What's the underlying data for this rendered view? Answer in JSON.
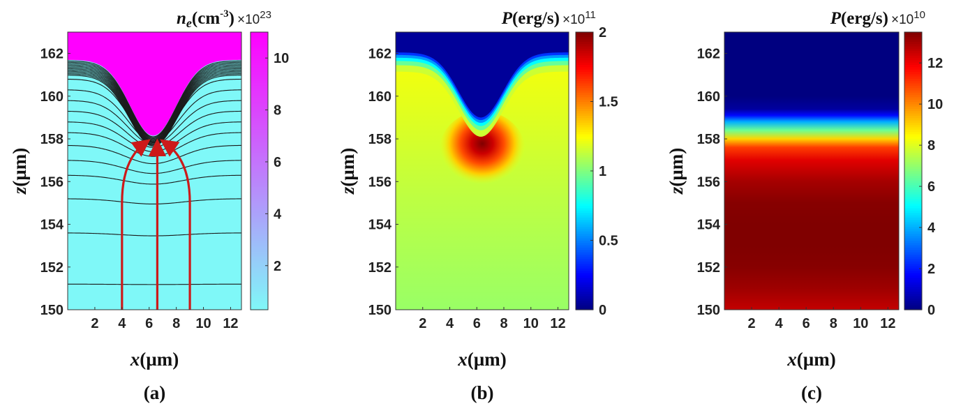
{
  "chart_data": [
    {
      "type": "heatmap",
      "panel_label": "(a)",
      "xlabel": {
        "var": "x",
        "unit": "(µm)"
      },
      "ylabel": {
        "var": "z",
        "unit": "(µm)"
      },
      "xlim": [
        0,
        12.8
      ],
      "ylim": [
        150,
        163
      ],
      "xticks": [
        "2",
        "4",
        "6",
        "8",
        "10",
        "12"
      ],
      "xtick_values": [
        2,
        4,
        6,
        8,
        10,
        12
      ],
      "yticks": [
        "150",
        "152",
        "154",
        "156",
        "158",
        "160",
        "162"
      ],
      "ytick_values": [
        150,
        152,
        154,
        156,
        158,
        160,
        162
      ],
      "colorbar": {
        "title_var": "n",
        "title_sub": "e",
        "title_unit_pre": "(cm",
        "title_unit_sup": "-3",
        "title_unit_post": ")",
        "multiplier_base": "×10",
        "multiplier_exp": "23",
        "range": [
          0.3,
          11
        ],
        "ticks": [
          "2",
          "4",
          "6",
          "8",
          "10"
        ],
        "tick_values": [
          2,
          4,
          6,
          8,
          10
        ],
        "colormap": "cool",
        "colors": [
          "#7ff8f8",
          "#ff00ff"
        ]
      },
      "description_contours": "density contours (black) bending around a dip centered at x≈6.3 µm, z≈158.1 µm",
      "arrows": [
        {
          "x_start": 4.0,
          "z_start": 150,
          "x_end": 5.7,
          "z_end": 158.0
        },
        {
          "x_start": 6.6,
          "z_start": 150,
          "x_end": 6.6,
          "z_end": 157.9
        },
        {
          "x_start": 9.0,
          "z_start": 150,
          "x_end": 7.2,
          "z_end": 158.0
        }
      ],
      "arrow_color": "#cc1a1a"
    },
    {
      "type": "heatmap",
      "panel_label": "(b)",
      "xlabel": {
        "var": "x",
        "unit": "(µm)"
      },
      "ylabel": {
        "var": "z",
        "unit": "(µm)"
      },
      "xlim": [
        0,
        12.8
      ],
      "ylim": [
        150,
        163
      ],
      "xticks": [
        "2",
        "4",
        "6",
        "8",
        "10",
        "12"
      ],
      "xtick_values": [
        2,
        4,
        6,
        8,
        10,
        12
      ],
      "yticks": [
        "150",
        "152",
        "154",
        "156",
        "158",
        "160",
        "162"
      ],
      "ytick_values": [
        150,
        152,
        154,
        156,
        158,
        160,
        162
      ],
      "colorbar": {
        "title_var": "P",
        "title_unit": "(erg/s)",
        "multiplier_base": "×10",
        "multiplier_exp": "11",
        "range": [
          0,
          2
        ],
        "ticks": [
          "0",
          "0.5",
          "1",
          "1.5",
          "2"
        ],
        "tick_values": [
          0,
          0.5,
          1,
          1.5,
          2
        ],
        "colormap": "jet"
      },
      "hotspot": {
        "x": 6.4,
        "z": 157.4,
        "value": 2.0
      },
      "background_value": 1.15
    },
    {
      "type": "heatmap",
      "panel_label": "(c)",
      "xlabel": {
        "var": "x",
        "unit": "(µm)"
      },
      "ylabel": {
        "var": "z",
        "unit": "(µm)"
      },
      "xlim": [
        0,
        12.8
      ],
      "ylim": [
        150,
        163
      ],
      "xticks": [
        "2",
        "4",
        "6",
        "8",
        "10",
        "12"
      ],
      "xtick_values": [
        2,
        4,
        6,
        8,
        10,
        12
      ],
      "yticks": [
        "150",
        "152",
        "154",
        "156",
        "158",
        "160",
        "162"
      ],
      "ytick_values": [
        150,
        152,
        154,
        156,
        158,
        160,
        162
      ],
      "colorbar": {
        "title_var": "P",
        "title_unit": "(erg/s)",
        "multiplier_base": "×10",
        "multiplier_exp": "10",
        "range": [
          0,
          13.5
        ],
        "ticks": [
          "0",
          "2",
          "4",
          "6",
          "8",
          "10",
          "12"
        ],
        "tick_values": [
          0,
          2,
          4,
          6,
          8,
          10,
          12
        ],
        "colormap": "jet"
      },
      "profile_z": [
        150,
        151,
        152,
        153,
        154,
        155,
        156,
        157,
        157.6,
        158.0,
        158.4,
        158.8,
        159.1,
        159.4,
        160,
        163
      ],
      "profile_value": [
        12.6,
        13.1,
        13.4,
        13.5,
        13.5,
        13.4,
        13.0,
        12.2,
        11.0,
        9.0,
        6.5,
        4.0,
        1.8,
        0.4,
        0.0,
        0.0
      ]
    }
  ]
}
